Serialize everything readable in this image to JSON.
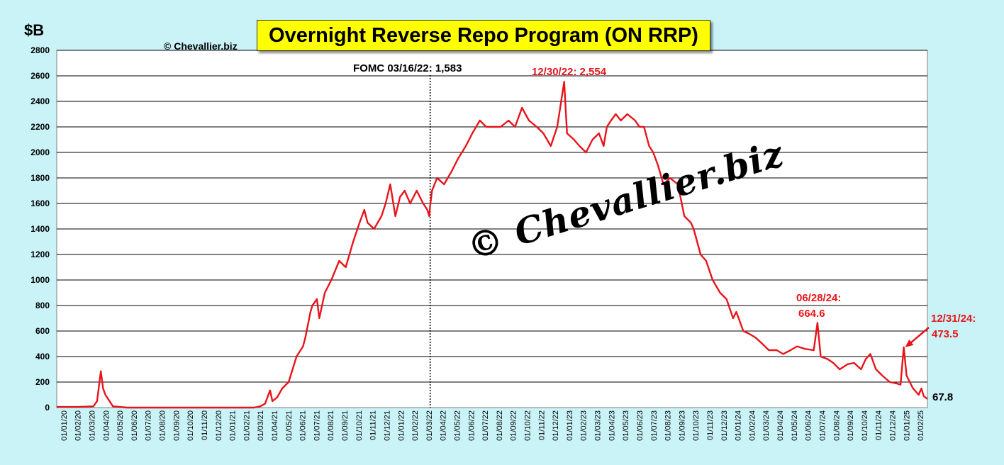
{
  "header": {
    "title": "Overnight Reverse Repo Program (ON RRP)",
    "ylabel": "$B",
    "copyright": "© Chevallier.biz",
    "watermark": "© Chevallier.biz"
  },
  "annotations": {
    "fomc": "FOMC 03/16/22: 1,583",
    "peak": "12/30/22: 2,554",
    "jun24_date": "06/28/24:",
    "jun24_value": "664.6",
    "dec24_date": "12/31/24:",
    "dec24_value": "473.5",
    "last_value": "67.8"
  },
  "colors": {
    "series": "#e8141b",
    "background": "#c9f3f7",
    "plot": "#ffffff",
    "title_bg": "#ffff00"
  },
  "chart_data": {
    "type": "line",
    "title": "Overnight Reverse Repo Program (ON RRP)",
    "ylabel": "$B",
    "ylim": [
      0,
      2800
    ],
    "yticks": [
      0,
      200,
      400,
      600,
      800,
      1000,
      1200,
      1400,
      1600,
      1800,
      2000,
      2200,
      2400,
      2600,
      2800
    ],
    "xlim": [
      "2020-01-01",
      "2025-02-20"
    ],
    "xtick_labels": [
      "01/01/20",
      "01/02/20",
      "01/03/20",
      "01/04/20",
      "01/05/20",
      "01/06/20",
      "01/07/20",
      "01/08/20",
      "01/09/20",
      "01/10/20",
      "01/11/20",
      "01/12/20",
      "01/01/21",
      "01/02/21",
      "01/03/21",
      "01/04/21",
      "01/05/21",
      "01/06/21",
      "01/07/21",
      "01/08/21",
      "01/09/21",
      "01/10/21",
      "01/11/21",
      "01/12/21",
      "01/01/22",
      "01/02/22",
      "01/03/22",
      "01/04/22",
      "01/05/22",
      "01/06/22",
      "01/07/22",
      "01/08/22",
      "01/09/22",
      "01/10/22",
      "01/11/22",
      "01/12/22",
      "01/01/23",
      "01/02/23",
      "01/03/23",
      "01/04/23",
      "01/05/23",
      "01/06/23",
      "01/07/23",
      "01/08/23",
      "01/09/23",
      "01/10/23",
      "01/11/23",
      "01/12/23",
      "01/01/24",
      "01/02/24",
      "01/03/24",
      "01/04/24",
      "01/05/24",
      "01/06/24",
      "01/07/24",
      "01/08/24",
      "01/09/24",
      "01/10/24",
      "01/11/24",
      "01/12/24",
      "01/01/25",
      "01/02/25"
    ],
    "grid": true,
    "vline": {
      "x": "2022-03-16",
      "label": "FOMC 03/16/22: 1,583",
      "style": "dotted"
    },
    "series": [
      {
        "x": [
          "2020-01-01",
          "2020-02-15",
          "2020-03-20",
          "2020-03-28",
          "2020-04-05",
          "2020-04-10",
          "2020-04-15",
          "2020-05-01",
          "2020-06-01",
          "2021-01-01",
          "2021-03-01",
          "2021-03-15",
          "2021-03-25",
          "2021-04-05",
          "2021-04-10",
          "2021-04-20",
          "2021-05-01",
          "2021-05-15",
          "2021-06-01",
          "2021-06-15",
          "2021-06-20",
          "2021-07-01",
          "2021-07-05",
          "2021-07-15",
          "2021-07-20",
          "2021-08-01",
          "2021-08-15",
          "2021-09-01",
          "2021-09-15",
          "2021-10-01",
          "2021-10-15",
          "2021-10-25",
          "2021-11-01",
          "2021-11-15",
          "2021-12-01",
          "2021-12-10",
          "2021-12-20",
          "2021-12-31",
          "2022-01-10",
          "2022-01-20",
          "2022-02-01",
          "2022-02-15",
          "2022-03-01",
          "2022-03-10",
          "2022-03-14",
          "2022-03-16",
          "2022-03-20",
          "2022-03-31",
          "2022-04-15",
          "2022-05-01",
          "2022-05-15",
          "2022-06-01",
          "2022-06-15",
          "2022-07-01",
          "2022-07-15",
          "2022-08-01",
          "2022-08-15",
          "2022-09-01",
          "2022-09-15",
          "2022-09-30",
          "2022-10-15",
          "2022-11-01",
          "2022-11-15",
          "2022-12-01",
          "2022-12-15",
          "2022-12-30",
          "2023-01-05",
          "2023-01-20",
          "2023-02-01",
          "2023-02-15",
          "2023-03-01",
          "2023-03-15",
          "2023-03-25",
          "2023-04-01",
          "2023-04-10",
          "2023-04-20",
          "2023-05-01",
          "2023-05-15",
          "2023-06-01",
          "2023-06-10",
          "2023-06-20",
          "2023-07-01",
          "2023-07-10",
          "2023-07-20",
          "2023-08-01",
          "2023-08-15",
          "2023-09-01",
          "2023-09-15",
          "2023-09-29",
          "2023-10-05",
          "2023-10-20",
          "2023-11-01",
          "2023-11-15",
          "2023-12-01",
          "2023-12-15",
          "2023-12-29",
          "2024-01-05",
          "2024-01-20",
          "2024-02-01",
          "2024-02-15",
          "2024-03-01",
          "2024-03-15",
          "2024-04-01",
          "2024-04-15",
          "2024-05-01",
          "2024-05-15",
          "2024-06-01",
          "2024-06-20",
          "2024-06-28",
          "2024-07-05",
          "2024-07-20",
          "2024-08-01",
          "2024-08-15",
          "2024-09-01",
          "2024-09-15",
          "2024-09-30",
          "2024-10-10",
          "2024-10-20",
          "2024-11-01",
          "2024-11-15",
          "2024-12-01",
          "2024-12-15",
          "2024-12-24",
          "2024-12-31",
          "2025-01-06",
          "2025-01-20",
          "2025-02-01",
          "2025-02-07",
          "2025-02-12",
          "2025-02-20"
        ],
        "values": [
          5,
          5,
          10,
          50,
          285,
          150,
          100,
          10,
          0,
          0,
          0,
          10,
          30,
          135,
          50,
          80,
          150,
          200,
          400,
          480,
          550,
          750,
          800,
          850,
          700,
          900,
          1000,
          1150,
          1100,
          1300,
          1450,
          1550,
          1450,
          1400,
          1500,
          1600,
          1750,
          1500,
          1650,
          1700,
          1600,
          1700,
          1600,
          1550,
          1500,
          1583,
          1700,
          1800,
          1750,
          1850,
          1950,
          2050,
          2150,
          2250,
          2200,
          2200,
          2200,
          2250,
          2200,
          2350,
          2250,
          2200,
          2150,
          2050,
          2200,
          2554,
          2150,
          2100,
          2050,
          2000,
          2100,
          2150,
          2050,
          2200,
          2250,
          2300,
          2250,
          2300,
          2250,
          2200,
          2200,
          2050,
          2000,
          1900,
          1750,
          1800,
          1750,
          1500,
          1450,
          1400,
          1200,
          1150,
          1000,
          900,
          850,
          700,
          750,
          600,
          580,
          550,
          500,
          450,
          450,
          420,
          450,
          480,
          460,
          450,
          664.6,
          400,
          380,
          350,
          300,
          340,
          350,
          300,
          380,
          420,
          300,
          250,
          200,
          190,
          180,
          473.5,
          250,
          150,
          100,
          150,
          90,
          67.8
        ]
      }
    ]
  }
}
